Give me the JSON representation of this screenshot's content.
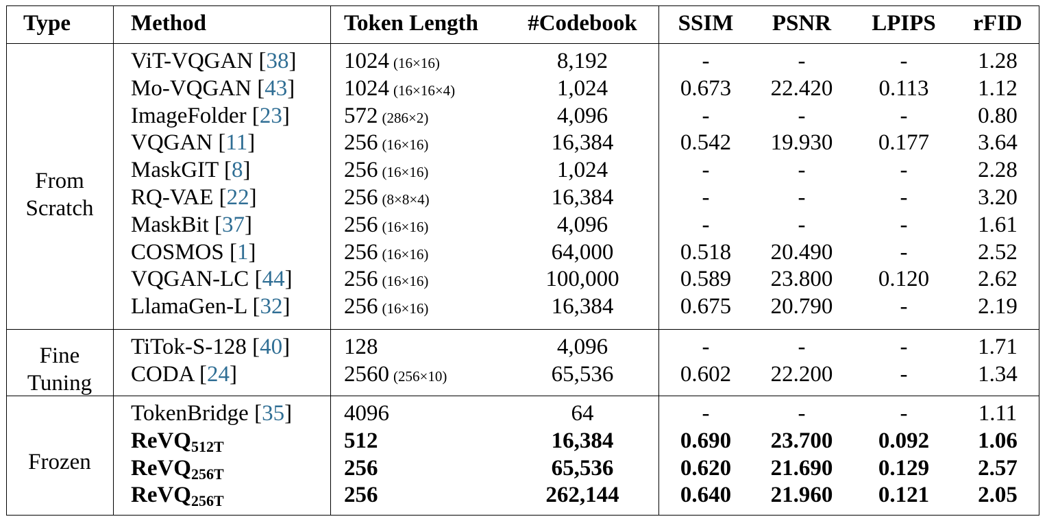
{
  "table": {
    "columns": {
      "type": "Type",
      "method": "Method",
      "token_length": "Token Length",
      "codebook": "#Codebook",
      "ssim": "SSIM",
      "psnr": "PSNR",
      "lpips": "LPIPS",
      "rfid": "rFID"
    },
    "groups": [
      {
        "type_lines": [
          "From",
          "Scratch"
        ],
        "rows": [
          {
            "method": "ViT-VQGAN",
            "cite": "38",
            "sub": "",
            "tl": "1024",
            "tl_shape": "(16×16)",
            "codebook": "8,192",
            "ssim": "-",
            "psnr": "-",
            "lpips": "-",
            "rfid": "1.28",
            "bold": false
          },
          {
            "method": "Mo-VQGAN",
            "cite": "43",
            "sub": "",
            "tl": "1024",
            "tl_shape": "(16×16×4)",
            "codebook": "1,024",
            "ssim": "0.673",
            "psnr": "22.420",
            "lpips": "0.113",
            "rfid": "1.12",
            "bold": false
          },
          {
            "method": "ImageFolder",
            "cite": "23",
            "sub": "",
            "tl": "572",
            "tl_shape": "(286×2)",
            "codebook": "4,096",
            "ssim": "-",
            "psnr": "-",
            "lpips": "-",
            "rfid": "0.80",
            "bold": false
          },
          {
            "method": "VQGAN",
            "cite": "11",
            "sub": "",
            "tl": "256",
            "tl_shape": "(16×16)",
            "codebook": "16,384",
            "ssim": "0.542",
            "psnr": "19.930",
            "lpips": "0.177",
            "rfid": "3.64",
            "bold": false
          },
          {
            "method": "MaskGIT",
            "cite": "8",
            "sub": "",
            "tl": "256",
            "tl_shape": "(16×16)",
            "codebook": "1,024",
            "ssim": "-",
            "psnr": "-",
            "lpips": "-",
            "rfid": "2.28",
            "bold": false
          },
          {
            "method": "RQ-VAE",
            "cite": "22",
            "sub": "",
            "tl": "256",
            "tl_shape": "(8×8×4)",
            "codebook": "16,384",
            "ssim": "-",
            "psnr": "-",
            "lpips": "-",
            "rfid": "3.20",
            "bold": false
          },
          {
            "method": "MaskBit",
            "cite": "37",
            "sub": "",
            "tl": "256",
            "tl_shape": "(16×16)",
            "codebook": "4,096",
            "ssim": "-",
            "psnr": "-",
            "lpips": "-",
            "rfid": "1.61",
            "bold": false
          },
          {
            "method": "COSMOS",
            "cite": "1",
            "sub": "",
            "tl": "256",
            "tl_shape": "(16×16)",
            "codebook": "64,000",
            "ssim": "0.518",
            "psnr": "20.490",
            "lpips": "-",
            "rfid": "2.52",
            "bold": false
          },
          {
            "method": "VQGAN-LC",
            "cite": "44",
            "sub": "",
            "tl": "256",
            "tl_shape": "(16×16)",
            "codebook": "100,000",
            "ssim": "0.589",
            "psnr": "23.800",
            "lpips": "0.120",
            "rfid": "2.62",
            "bold": false
          },
          {
            "method": "LlamaGen-L",
            "cite": "32",
            "sub": "",
            "tl": "256",
            "tl_shape": "(16×16)",
            "codebook": "16,384",
            "ssim": "0.675",
            "psnr": "20.790",
            "lpips": "-",
            "rfid": "2.19",
            "bold": false
          }
        ]
      },
      {
        "type_lines": [
          "Fine",
          "Tuning"
        ],
        "rows": [
          {
            "method": "TiTok-S-128",
            "cite": "40",
            "sub": "",
            "tl": "128",
            "tl_shape": "",
            "codebook": "4,096",
            "ssim": "-",
            "psnr": "-",
            "lpips": "-",
            "rfid": "1.71",
            "bold": false
          },
          {
            "method": "CODA",
            "cite": "24",
            "sub": "",
            "tl": "2560",
            "tl_shape": "(256×10)",
            "codebook": "65,536",
            "ssim": "0.602",
            "psnr": "22.200",
            "lpips": "-",
            "rfid": "1.34",
            "bold": false
          }
        ]
      },
      {
        "type_lines": [
          "Frozen"
        ],
        "rows": [
          {
            "method": "TokenBridge",
            "cite": "35",
            "sub": "",
            "tl": "4096",
            "tl_shape": "",
            "codebook": "64",
            "ssim": "-",
            "psnr": "-",
            "lpips": "-",
            "rfid": "1.11",
            "bold": false
          },
          {
            "method": "ReVQ",
            "cite": "",
            "sub": "512T",
            "tl": "512",
            "tl_shape": "",
            "codebook": "16,384",
            "ssim": "0.690",
            "psnr": "23.700",
            "lpips": "0.092",
            "rfid": "1.06",
            "bold": true
          },
          {
            "method": "ReVQ",
            "cite": "",
            "sub": "256T",
            "tl": "256",
            "tl_shape": "",
            "codebook": "65,536",
            "ssim": "0.620",
            "psnr": "21.690",
            "lpips": "0.129",
            "rfid": "2.57",
            "bold": true
          },
          {
            "method": "ReVQ",
            "cite": "",
            "sub": "256T",
            "tl": "256",
            "tl_shape": "",
            "codebook": "262,144",
            "ssim": "0.640",
            "psnr": "21.960",
            "lpips": "0.121",
            "rfid": "2.05",
            "bold": true
          }
        ]
      }
    ]
  }
}
